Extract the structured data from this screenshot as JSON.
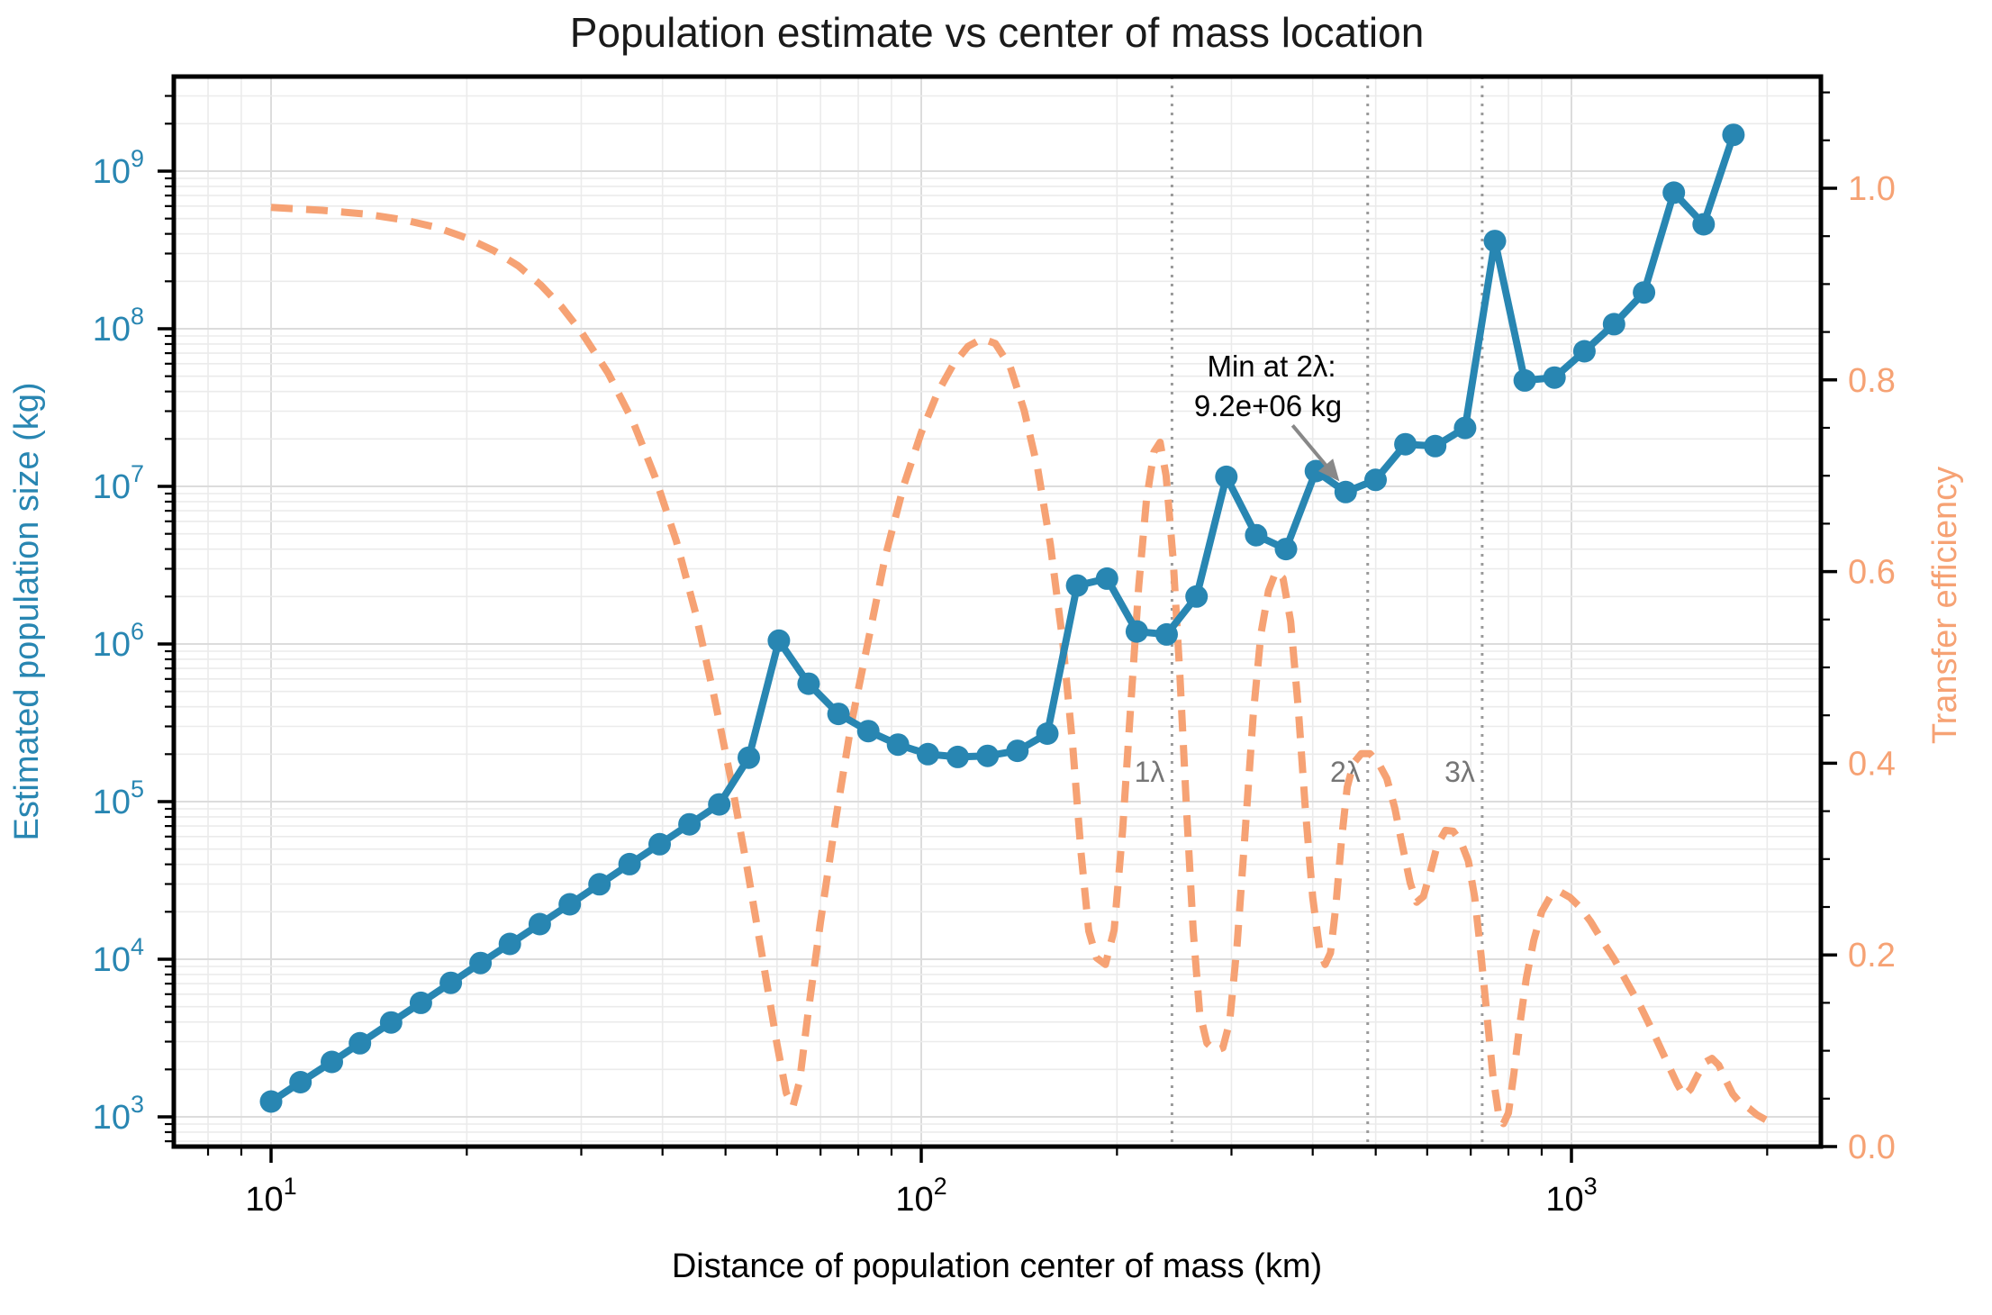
{
  "title": "Population estimate vs center of mass location",
  "axes": {
    "x": {
      "label": "Distance of population center of mass (km)",
      "scale": "log",
      "major_ticks": [
        {
          "base": "10",
          "exp": "1",
          "value": 10
        },
        {
          "base": "10",
          "exp": "2",
          "value": 100
        },
        {
          "base": "10",
          "exp": "3",
          "value": 1000
        }
      ]
    },
    "y_left": {
      "label": "Estimated population size (kg)",
      "scale": "log",
      "color": "#2886b2",
      "major_ticks": [
        {
          "base": "10",
          "exp": "3",
          "value": 1000
        },
        {
          "base": "10",
          "exp": "4",
          "value": 10000
        },
        {
          "base": "10",
          "exp": "5",
          "value": 100000
        },
        {
          "base": "10",
          "exp": "6",
          "value": 1000000
        },
        {
          "base": "10",
          "exp": "7",
          "value": 10000000
        },
        {
          "base": "10",
          "exp": "8",
          "value": 100000000
        },
        {
          "base": "10",
          "exp": "9",
          "value": 1000000000
        }
      ]
    },
    "y_right": {
      "label": "Transfer efficiency",
      "scale": "linear",
      "color": "#f6a274",
      "major_ticks": [
        {
          "label": "0.0",
          "value": 0.0
        },
        {
          "label": "0.2",
          "value": 0.2
        },
        {
          "label": "0.4",
          "value": 0.4
        },
        {
          "label": "0.6",
          "value": 0.6
        },
        {
          "label": "0.8",
          "value": 0.8
        },
        {
          "label": "1.0",
          "value": 1.0
        }
      ]
    }
  },
  "annotation": {
    "line1": "Min at 2λ:",
    "line2": "9.2e+06 kg",
    "target_x": 449.6,
    "target_y": 9200000
  },
  "lambda_markers": [
    {
      "label": "1λ",
      "x": 243
    },
    {
      "label": "2λ",
      "x": 486
    },
    {
      "label": "3λ",
      "x": 729
    }
  ],
  "colors": {
    "population": "#2886b2",
    "efficiency": "#f6a274",
    "grid_major": "#dcdcdc",
    "grid_minor": "#ebebeb",
    "spine": "#000000",
    "lambda_line": "#9a9a9a",
    "lambda_text": "#757575",
    "arrow": "#888888",
    "annotation_text": "#000000"
  },
  "chart_data": {
    "type": "line",
    "title": "Population estimate vs center of mass location",
    "xlabel": "Distance of population center of mass (km)",
    "ylabel_left": "Estimated population size (kg)",
    "ylabel_right": "Transfer efficiency",
    "xscale": "log",
    "xlim": [
      7.1,
      2420
    ],
    "ylim_left": [
      650,
      3980000000
    ],
    "ylim_right": [
      0,
      1.117
    ],
    "grid": true,
    "legend": "none",
    "vlines_lambda_km": [
      243,
      486,
      729
    ],
    "series": [
      {
        "name": "Estimated population size (kg)",
        "axis": "left",
        "style": "solid",
        "markers": true,
        "color": "#2886b2",
        "points": [
          [
            10,
            1250
          ],
          [
            11.1,
            1660
          ],
          [
            12.4,
            2230
          ],
          [
            13.7,
            2930
          ],
          [
            15.3,
            3970
          ],
          [
            17.0,
            5290
          ],
          [
            18.9,
            7080
          ],
          [
            21.0,
            9460
          ],
          [
            23.3,
            12500
          ],
          [
            25.9,
            16700
          ],
          [
            28.8,
            22300
          ],
          [
            32.0,
            29900
          ],
          [
            35.6,
            40100
          ],
          [
            39.6,
            53700
          ],
          [
            44.0,
            71800
          ],
          [
            48.9,
            96000
          ],
          [
            54.3,
            190000
          ],
          [
            60.4,
            1050000
          ],
          [
            67.1,
            560000
          ],
          [
            74.6,
            360000
          ],
          [
            82.9,
            280000
          ],
          [
            92.1,
            230000
          ],
          [
            102.4,
            200000
          ],
          [
            113.8,
            192000
          ],
          [
            126.5,
            195000
          ],
          [
            140.6,
            210000
          ],
          [
            156.3,
            270000
          ],
          [
            173.7,
            2350000
          ],
          [
            193.1,
            2600000
          ],
          [
            214.6,
            1200000
          ],
          [
            238.5,
            1150000
          ],
          [
            265.1,
            2000000
          ],
          [
            294.6,
            11500000
          ],
          [
            327.4,
            4900000
          ],
          [
            363.9,
            4000000
          ],
          [
            404.5,
            12500000
          ],
          [
            449.6,
            9200000
          ],
          [
            499.7,
            11000000
          ],
          [
            555.4,
            18500000
          ],
          [
            617.3,
            18000000
          ],
          [
            686.1,
            23500000
          ],
          [
            762.5,
            360000000
          ],
          [
            847.5,
            47000000
          ],
          [
            941.9,
            49000000
          ],
          [
            1047,
            72000000
          ],
          [
            1163,
            107000000
          ],
          [
            1293,
            170000000
          ],
          [
            1437,
            730000000
          ],
          [
            1597,
            460000000
          ],
          [
            1775,
            1700000000
          ]
        ]
      },
      {
        "name": "Transfer efficiency",
        "axis": "right",
        "style": "dashed",
        "markers": false,
        "color": "#f6a274",
        "points": [
          [
            10,
            0.98
          ],
          [
            12,
            0.977
          ],
          [
            14,
            0.973
          ],
          [
            16,
            0.967
          ],
          [
            18,
            0.959
          ],
          [
            20,
            0.948
          ],
          [
            22,
            0.935
          ],
          [
            24,
            0.919
          ],
          [
            26,
            0.899
          ],
          [
            28,
            0.876
          ],
          [
            30,
            0.85
          ],
          [
            33,
            0.807
          ],
          [
            36,
            0.757
          ],
          [
            39,
            0.698
          ],
          [
            42,
            0.632
          ],
          [
            45,
            0.556
          ],
          [
            48,
            0.47
          ],
          [
            51,
            0.382
          ],
          [
            54,
            0.29
          ],
          [
            57,
            0.197
          ],
          [
            60,
            0.107
          ],
          [
            62,
            0.056
          ],
          [
            63.5,
            0.042
          ],
          [
            65,
            0.068
          ],
          [
            67,
            0.14
          ],
          [
            70,
            0.235
          ],
          [
            74,
            0.345
          ],
          [
            78,
            0.44
          ],
          [
            83,
            0.53
          ],
          [
            88,
            0.615
          ],
          [
            94,
            0.69
          ],
          [
            100,
            0.745
          ],
          [
            106,
            0.787
          ],
          [
            112,
            0.816
          ],
          [
            118,
            0.835
          ],
          [
            124,
            0.843
          ],
          [
            130,
            0.838
          ],
          [
            137,
            0.814
          ],
          [
            144,
            0.768
          ],
          [
            151,
            0.708
          ],
          [
            158,
            0.628
          ],
          [
            165,
            0.528
          ],
          [
            171,
            0.418
          ],
          [
            176,
            0.308
          ],
          [
            181,
            0.225
          ],
          [
            186,
            0.197
          ],
          [
            192,
            0.19
          ],
          [
            198,
            0.226
          ],
          [
            204,
            0.33
          ],
          [
            210,
            0.46
          ],
          [
            216,
            0.585
          ],
          [
            222,
            0.675
          ],
          [
            228,
            0.725
          ],
          [
            233,
            0.735
          ],
          [
            238,
            0.7
          ],
          [
            244,
            0.613
          ],
          [
            250,
            0.49
          ],
          [
            256,
            0.35
          ],
          [
            262,
            0.225
          ],
          [
            268,
            0.14
          ],
          [
            275,
            0.108
          ],
          [
            283,
            0.1
          ],
          [
            291,
            0.103
          ],
          [
            298,
            0.13
          ],
          [
            306,
            0.21
          ],
          [
            315,
            0.33
          ],
          [
            324,
            0.45
          ],
          [
            333,
            0.535
          ],
          [
            342,
            0.58
          ],
          [
            351,
            0.6
          ],
          [
            360,
            0.593
          ],
          [
            370,
            0.548
          ],
          [
            380,
            0.458
          ],
          [
            390,
            0.35
          ],
          [
            400,
            0.26
          ],
          [
            410,
            0.205
          ],
          [
            418,
            0.19
          ],
          [
            426,
            0.202
          ],
          [
            434,
            0.25
          ],
          [
            443,
            0.32
          ],
          [
            452,
            0.375
          ],
          [
            462,
            0.4
          ],
          [
            475,
            0.41
          ],
          [
            490,
            0.41
          ],
          [
            505,
            0.4
          ],
          [
            520,
            0.384
          ],
          [
            535,
            0.353
          ],
          [
            550,
            0.313
          ],
          [
            565,
            0.275
          ],
          [
            578,
            0.255
          ],
          [
            592,
            0.261
          ],
          [
            606,
            0.285
          ],
          [
            622,
            0.315
          ],
          [
            640,
            0.33
          ],
          [
            658,
            0.329
          ],
          [
            676,
            0.318
          ],
          [
            694,
            0.298
          ],
          [
            710,
            0.26
          ],
          [
            726,
            0.2
          ],
          [
            742,
            0.135
          ],
          [
            757,
            0.075
          ],
          [
            772,
            0.035
          ],
          [
            786,
            0.024
          ],
          [
            800,
            0.035
          ],
          [
            815,
            0.075
          ],
          [
            832,
            0.125
          ],
          [
            852,
            0.175
          ],
          [
            875,
            0.215
          ],
          [
            900,
            0.245
          ],
          [
            930,
            0.262
          ],
          [
            960,
            0.266
          ],
          [
            995,
            0.26
          ],
          [
            1030,
            0.25
          ],
          [
            1070,
            0.235
          ],
          [
            1115,
            0.215
          ],
          [
            1165,
            0.195
          ],
          [
            1220,
            0.17
          ],
          [
            1280,
            0.145
          ],
          [
            1345,
            0.115
          ],
          [
            1410,
            0.085
          ],
          [
            1455,
            0.065
          ],
          [
            1490,
            0.053
          ],
          [
            1525,
            0.06
          ],
          [
            1565,
            0.075
          ],
          [
            1605,
            0.088
          ],
          [
            1645,
            0.092
          ],
          [
            1685,
            0.085
          ],
          [
            1725,
            0.07
          ],
          [
            1770,
            0.055
          ],
          [
            1820,
            0.045
          ],
          [
            1875,
            0.04
          ],
          [
            1930,
            0.033
          ],
          [
            1990,
            0.028
          ]
        ]
      }
    ],
    "annotation": {
      "text": "Min at 2λ:\n9.2e+06 kg",
      "xy": [
        449.6,
        9200000
      ]
    }
  }
}
